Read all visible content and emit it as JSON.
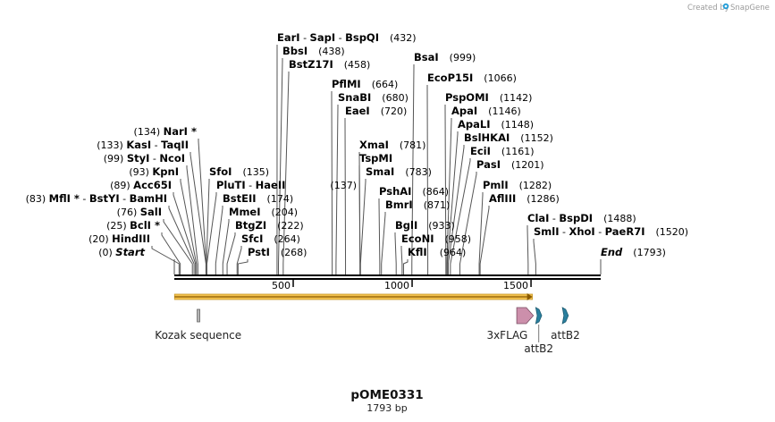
{
  "credit": {
    "prefix": "Created by",
    "brand": "SnapGene"
  },
  "plasmid": {
    "name": "pOME0331",
    "size_label": "1793 bp",
    "length": 1793
  },
  "scale_ticks": [
    {
      "value": 500,
      "label": "500"
    },
    {
      "value": 1000,
      "label": "1000"
    },
    {
      "value": 1500,
      "label": "1500"
    }
  ],
  "sites": [
    {
      "id": "start",
      "side": "left",
      "pos": 0,
      "position": "(0)",
      "parts": [
        {
          "text": "Start",
          "italic": true
        }
      ]
    },
    {
      "id": "hindiii",
      "side": "left",
      "pos": 20,
      "position": "(20)",
      "parts": [
        {
          "text": "HindIII"
        }
      ]
    },
    {
      "id": "bcli",
      "side": "left",
      "pos": 25,
      "position": "(25)",
      "parts": [
        {
          "text": "BclI"
        },
        {
          "text": " *"
        }
      ]
    },
    {
      "id": "sali",
      "side": "left",
      "pos": 76,
      "position": "(76)",
      "parts": [
        {
          "text": "SalI"
        }
      ]
    },
    {
      "id": "mfli",
      "side": "left",
      "pos": 83,
      "position": "(83)",
      "parts": [
        {
          "text": "MflI"
        },
        {
          "text": " *"
        },
        {
          "text": "  -  ",
          "sep": true
        },
        {
          "text": "BstYI"
        },
        {
          "text": "  -  ",
          "sep": true
        },
        {
          "text": "BamHI"
        }
      ]
    },
    {
      "id": "acc65i",
      "side": "left",
      "pos": 89,
      "position": "(89)",
      "parts": [
        {
          "text": "Acc65I"
        }
      ]
    },
    {
      "id": "kpni",
      "side": "left",
      "pos": 93,
      "position": "(93)",
      "parts": [
        {
          "text": "KpnI"
        }
      ]
    },
    {
      "id": "styi",
      "side": "left",
      "pos": 99,
      "position": "(99)",
      "parts": [
        {
          "text": "StyI"
        },
        {
          "text": "  -  ",
          "sep": true
        },
        {
          "text": "NcoI"
        }
      ]
    },
    {
      "id": "kasi",
      "side": "left",
      "pos": 133,
      "position": "(133)",
      "parts": [
        {
          "text": "KasI"
        },
        {
          "text": "  -  ",
          "sep": true
        },
        {
          "text": "TaqII"
        }
      ]
    },
    {
      "id": "nari",
      "side": "left",
      "pos": 134,
      "position": "(134)",
      "parts": [
        {
          "text": "NarI"
        },
        {
          "text": " *"
        }
      ]
    },
    {
      "id": "sfoi",
      "side": "right",
      "pos": 135,
      "position": "(135)",
      "parts": [
        {
          "text": "SfoI"
        }
      ]
    },
    {
      "id": "pluti",
      "side": "right",
      "pos": 137,
      "position": "(137)",
      "parts": [
        {
          "text": "PluTI"
        },
        {
          "text": "  -  ",
          "sep": true
        },
        {
          "text": "HaeII"
        }
      ]
    },
    {
      "id": "bsteii",
      "side": "right",
      "pos": 174,
      "position": "(174)",
      "parts": [
        {
          "text": "BstEII"
        }
      ]
    },
    {
      "id": "mmei",
      "side": "right",
      "pos": 204,
      "position": "(204)",
      "parts": [
        {
          "text": "MmeI"
        }
      ]
    },
    {
      "id": "btgzi",
      "side": "right",
      "pos": 222,
      "position": "(222)",
      "parts": [
        {
          "text": "BtgZI"
        }
      ]
    },
    {
      "id": "sfci",
      "side": "right",
      "pos": 264,
      "position": "(264)",
      "parts": [
        {
          "text": "SfcI"
        }
      ]
    },
    {
      "id": "psti",
      "side": "right",
      "pos": 268,
      "position": "(268)",
      "parts": [
        {
          "text": "PstI"
        }
      ]
    },
    {
      "id": "eari",
      "side": "right",
      "pos": 432,
      "position": "(432)",
      "parts": [
        {
          "text": "EarI"
        },
        {
          "text": "  -  ",
          "sep": true
        },
        {
          "text": "SapI"
        },
        {
          "text": "  -  ",
          "sep": true
        },
        {
          "text": "BspQI"
        }
      ]
    },
    {
      "id": "bbsi",
      "side": "right",
      "pos": 438,
      "position": "(438)",
      "parts": [
        {
          "text": "BbsI"
        }
      ]
    },
    {
      "id": "bstz17i",
      "side": "right",
      "pos": 458,
      "position": "(458)",
      "parts": [
        {
          "text": "BstZ17I"
        }
      ]
    },
    {
      "id": "pflmi",
      "side": "right",
      "pos": 664,
      "position": "(664)",
      "parts": [
        {
          "text": "PflMI"
        }
      ]
    },
    {
      "id": "snabi",
      "side": "right",
      "pos": 680,
      "position": "(680)",
      "parts": [
        {
          "text": "SnaBI"
        }
      ]
    },
    {
      "id": "eaei",
      "side": "right",
      "pos": 720,
      "position": "(720)",
      "parts": [
        {
          "text": "EaeI"
        }
      ]
    },
    {
      "id": "xmai",
      "side": "right",
      "pos": 781,
      "position": "(781)",
      "parts": [
        {
          "text": "XmaI"
        }
      ]
    },
    {
      "id": "tspmi",
      "side": "right",
      "pos": 781,
      "position": "",
      "parts": [
        {
          "text": "TspMI"
        }
      ]
    },
    {
      "id": "smai",
      "side": "right",
      "pos": 783,
      "position": "(783)",
      "parts": [
        {
          "text": "SmaI"
        }
      ]
    },
    {
      "id": "pshai",
      "side": "right",
      "pos": 864,
      "position": "(864)",
      "parts": [
        {
          "text": "PshAI"
        }
      ]
    },
    {
      "id": "bmri",
      "side": "right",
      "pos": 871,
      "position": "(871)",
      "parts": [
        {
          "text": "BmrI"
        }
      ]
    },
    {
      "id": "bgli",
      "side": "right",
      "pos": 933,
      "position": "(933)",
      "parts": [
        {
          "text": "BglI"
        }
      ]
    },
    {
      "id": "econi",
      "side": "right",
      "pos": 958,
      "position": "(958)",
      "parts": [
        {
          "text": "EcoNI"
        }
      ]
    },
    {
      "id": "kfli",
      "side": "right",
      "pos": 964,
      "position": "(964)",
      "parts": [
        {
          "text": "KflI"
        }
      ]
    },
    {
      "id": "bsai",
      "side": "right",
      "pos": 999,
      "position": "(999)",
      "parts": [
        {
          "text": "BsaI"
        }
      ]
    },
    {
      "id": "ecop15i",
      "side": "right",
      "pos": 1066,
      "position": "(1066)",
      "parts": [
        {
          "text": "EcoP15I"
        }
      ]
    },
    {
      "id": "pspomi",
      "side": "right",
      "pos": 1142,
      "position": "(1142)",
      "parts": [
        {
          "text": "PspOMI"
        }
      ]
    },
    {
      "id": "apai",
      "side": "right",
      "pos": 1146,
      "position": "(1146)",
      "parts": [
        {
          "text": "ApaI"
        }
      ]
    },
    {
      "id": "apali",
      "side": "right",
      "pos": 1148,
      "position": "(1148)",
      "parts": [
        {
          "text": "ApaLI"
        }
      ]
    },
    {
      "id": "bslhkai",
      "side": "right",
      "pos": 1152,
      "position": "(1152)",
      "parts": [
        {
          "text": "BslHKAI"
        }
      ]
    },
    {
      "id": "ecii",
      "side": "right",
      "pos": 1161,
      "position": "(1161)",
      "parts": [
        {
          "text": "EciI"
        }
      ]
    },
    {
      "id": "pasi",
      "side": "right",
      "pos": 1201,
      "position": "(1201)",
      "parts": [
        {
          "text": "PasI"
        }
      ]
    },
    {
      "id": "pmli",
      "side": "right",
      "pos": 1282,
      "position": "(1282)",
      "parts": [
        {
          "text": "PmlI"
        }
      ]
    },
    {
      "id": "afliii",
      "side": "right",
      "pos": 1286,
      "position": "(1286)",
      "parts": [
        {
          "text": "AflIII"
        }
      ]
    },
    {
      "id": "clai",
      "side": "right",
      "pos": 1488,
      "position": "(1488)",
      "parts": [
        {
          "text": "ClaI"
        },
        {
          "text": "  -  ",
          "sep": true
        },
        {
          "text": "BspDI"
        }
      ]
    },
    {
      "id": "smli",
      "side": "right",
      "pos": 1520,
      "position": "(1520)",
      "parts": [
        {
          "text": "SmlI"
        },
        {
          "text": "  -  ",
          "sep": true
        },
        {
          "text": "XhoI"
        },
        {
          "text": "  -  ",
          "sep": true
        },
        {
          "text": "PaeR7I"
        }
      ]
    },
    {
      "id": "end",
      "side": "right",
      "pos": 1793,
      "position": "(1793)",
      "parts": [
        {
          "text": "End",
          "italic": true
        }
      ]
    }
  ],
  "features": [
    {
      "id": "orf",
      "type": "orf",
      "start": 1,
      "end": 1506,
      "color": "#f2c14e",
      "label": ""
    },
    {
      "id": "kozak",
      "type": "box",
      "start": 96,
      "end": 105,
      "color": "#b5b5b5",
      "label": "Kozak sequence"
    },
    {
      "id": "flag",
      "type": "arrow",
      "start": 1440,
      "end": 1510,
      "color": "#cc8fab",
      "label": "3xFLAG"
    },
    {
      "id": "attb2a",
      "type": "att",
      "start": 1520,
      "end": 1545,
      "color": "#2a7f9e",
      "label": "attB2"
    },
    {
      "id": "attb2b",
      "type": "att",
      "start": 1632,
      "end": 1657,
      "color": "#2a7f9e",
      "label": "attB2"
    }
  ],
  "colors": {
    "backbone": "#000000",
    "leader": "#555555"
  }
}
